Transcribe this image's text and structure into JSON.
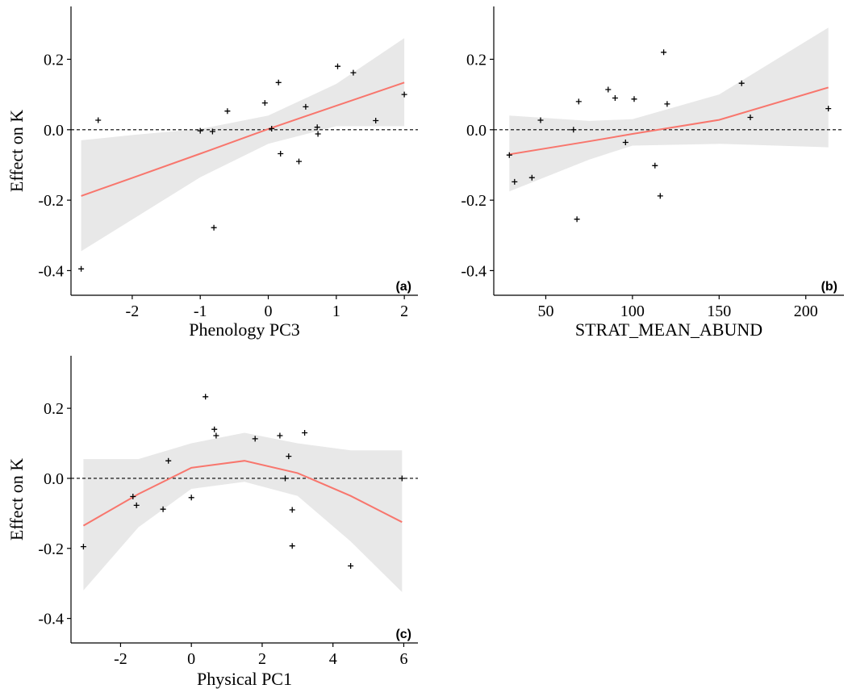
{
  "chart_data": [
    {
      "type": "scatter",
      "panel_label": "(a)",
      "xlabel": "Phenology PC3",
      "ylabel": "Effect on K",
      "xlim": [
        -2.9,
        2.2
      ],
      "ylim": [
        -0.47,
        0.35
      ],
      "xticks": [
        -2,
        -1,
        0,
        1,
        2
      ],
      "xtick_labels": [
        "-2",
        "-1",
        "0",
        "1",
        "2"
      ],
      "yticks": [
        -0.4,
        -0.2,
        0.0,
        0.2
      ],
      "ytick_labels": [
        "-0.4",
        "-0.2",
        "0.0",
        "0.2"
      ],
      "reference_line_y": 0,
      "points": [
        [
          -2.75,
          -0.395
        ],
        [
          -2.5,
          0.027
        ],
        [
          -1.0,
          -0.003
        ],
        [
          -0.82,
          -0.005
        ],
        [
          -0.8,
          -0.278
        ],
        [
          -0.6,
          0.053
        ],
        [
          -0.05,
          0.076
        ],
        [
          0.05,
          0.003
        ],
        [
          0.15,
          0.134
        ],
        [
          0.18,
          -0.068
        ],
        [
          0.45,
          -0.09
        ],
        [
          0.55,
          0.065
        ],
        [
          0.72,
          0.007
        ],
        [
          0.73,
          -0.012
        ],
        [
          1.02,
          0.18
        ],
        [
          1.25,
          0.162
        ],
        [
          1.58,
          0.026
        ],
        [
          2.0,
          0.1
        ]
      ],
      "fit": {
        "x": [
          -2.75,
          -2.0,
          -1.0,
          0.0,
          1.0,
          2.0
        ],
        "y": [
          -0.188,
          -0.137,
          -0.068,
          0.002,
          0.068,
          0.134
        ],
        "lower": [
          -0.345,
          -0.255,
          -0.135,
          -0.04,
          0.01,
          0.01
        ],
        "upper": [
          -0.03,
          -0.015,
          0.002,
          0.04,
          0.13,
          0.26
        ]
      },
      "colors": {
        "fit": "#F8766D",
        "band": "#E8E8E8",
        "points": "#000000"
      }
    },
    {
      "type": "scatter",
      "panel_label": "(b)",
      "xlabel": "STRAT_MEAN_ABUND",
      "ylabel": "",
      "xlim": [
        20,
        222
      ],
      "ylim": [
        -0.47,
        0.35
      ],
      "xticks": [
        50,
        100,
        150,
        200
      ],
      "xtick_labels": [
        "50",
        "100",
        "150",
        "200"
      ],
      "yticks": [
        -0.4,
        -0.2,
        0.0,
        0.2
      ],
      "ytick_labels": [
        "-0.4",
        "-0.2",
        "0.0",
        "0.2"
      ],
      "reference_line_y": 0,
      "points": [
        [
          29,
          -0.072
        ],
        [
          32,
          -0.148
        ],
        [
          42,
          -0.136
        ],
        [
          47,
          0.027
        ],
        [
          66,
          0.0
        ],
        [
          68,
          -0.254
        ],
        [
          69,
          0.08
        ],
        [
          86,
          0.114
        ],
        [
          90,
          0.09
        ],
        [
          96,
          -0.036
        ],
        [
          101,
          0.087
        ],
        [
          113,
          -0.102
        ],
        [
          116,
          -0.188
        ],
        [
          118,
          0.22
        ],
        [
          120,
          0.073
        ],
        [
          163,
          0.132
        ],
        [
          168,
          0.035
        ],
        [
          213,
          0.06
        ]
      ],
      "fit": {
        "x": [
          29,
          75,
          100,
          150,
          213
        ],
        "y": [
          -0.07,
          -0.033,
          -0.012,
          0.028,
          0.12
        ],
        "lower": [
          -0.175,
          -0.085,
          -0.045,
          -0.04,
          -0.05
        ],
        "upper": [
          0.04,
          0.025,
          0.03,
          0.1,
          0.29
        ]
      },
      "colors": {
        "fit": "#F8766D",
        "band": "#E8E8E8",
        "points": "#000000"
      }
    },
    {
      "type": "scatter",
      "panel_label": "(c)",
      "xlabel": "Physical PC1",
      "ylabel": "Effect on K",
      "xlim": [
        -3.4,
        6.4
      ],
      "ylim": [
        -0.47,
        0.35
      ],
      "xticks": [
        -2,
        0,
        2,
        4,
        6
      ],
      "xtick_labels": [
        "-2",
        "0",
        "2",
        "4",
        "6"
      ],
      "yticks": [
        -0.4,
        -0.2,
        0.0,
        0.2
      ],
      "ytick_labels": [
        "-0.4",
        "-0.2",
        "0.0",
        "0.2"
      ],
      "reference_line_y": 0,
      "points": [
        [
          -3.05,
          -0.195
        ],
        [
          -1.65,
          -0.052
        ],
        [
          -1.55,
          -0.077
        ],
        [
          -0.8,
          -0.088
        ],
        [
          -0.65,
          0.05
        ],
        [
          0.0,
          -0.055
        ],
        [
          0.4,
          0.233
        ],
        [
          0.65,
          0.14
        ],
        [
          0.7,
          0.122
        ],
        [
          1.8,
          0.113
        ],
        [
          2.5,
          0.122
        ],
        [
          2.65,
          0.0
        ],
        [
          2.75,
          0.063
        ],
        [
          2.85,
          -0.09
        ],
        [
          2.85,
          -0.193
        ],
        [
          3.2,
          0.13
        ],
        [
          4.5,
          -0.25
        ],
        [
          5.95,
          0.0
        ]
      ],
      "fit": {
        "x": [
          -3.05,
          -1.5,
          0.0,
          1.5,
          3.0,
          4.5,
          5.95
        ],
        "y": [
          -0.135,
          -0.045,
          0.03,
          0.05,
          0.015,
          -0.05,
          -0.125
        ],
        "lower": [
          -0.32,
          -0.14,
          -0.03,
          -0.01,
          -0.05,
          -0.18,
          -0.325
        ],
        "upper": [
          0.055,
          0.055,
          0.1,
          0.13,
          0.1,
          0.08,
          0.08
        ]
      },
      "colors": {
        "fit": "#F8766D",
        "band": "#E8E8E8",
        "points": "#000000"
      }
    }
  ]
}
